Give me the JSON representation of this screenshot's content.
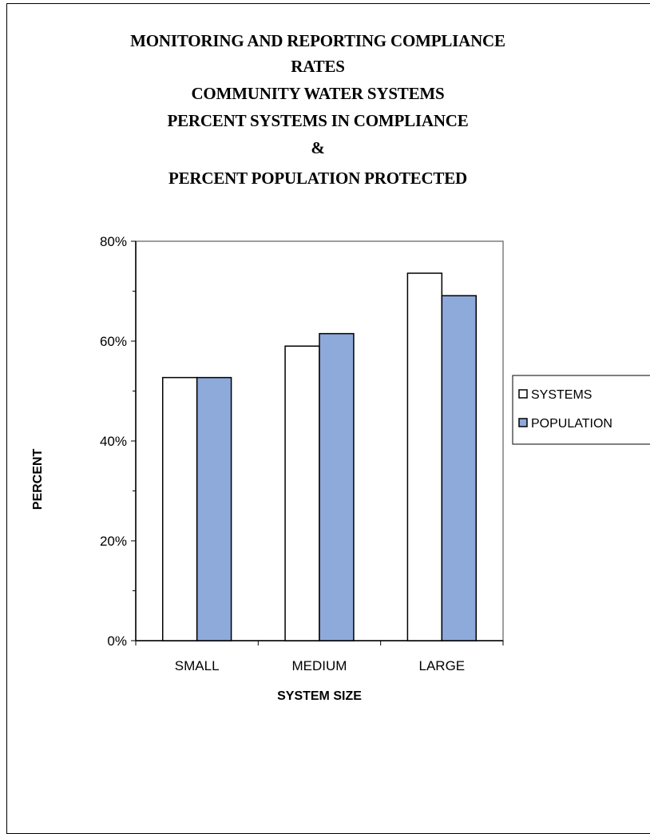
{
  "chart_data": {
    "type": "bar",
    "title_lines": [
      "MONITORING  AND REPORTING  COMPLIANCE",
      "RATES",
      "COMMUNITY WATER SYSTEMS",
      "PERCENT  SYSTEMS  IN COMPLIANCE",
      "&",
      "PERCENT  POPULATION  PROTECTED"
    ],
    "categories": [
      "SMALL",
      "MEDIUM",
      "LARGE"
    ],
    "series": [
      {
        "name": "SYSTEMS",
        "values": [
          52.7,
          59.0,
          73.6
        ],
        "color": "#ffffff"
      },
      {
        "name": "POPULATION",
        "values": [
          52.7,
          61.5,
          69.1
        ],
        "color": "#8eaadb"
      }
    ],
    "xlabel": "SYSTEM SIZE",
    "ylabel": "PERCENT",
    "ylim": [
      0,
      80
    ],
    "yticks": [
      "0%",
      "20%",
      "40%",
      "60%",
      "80%"
    ],
    "grid": false,
    "legend_position": "right"
  }
}
